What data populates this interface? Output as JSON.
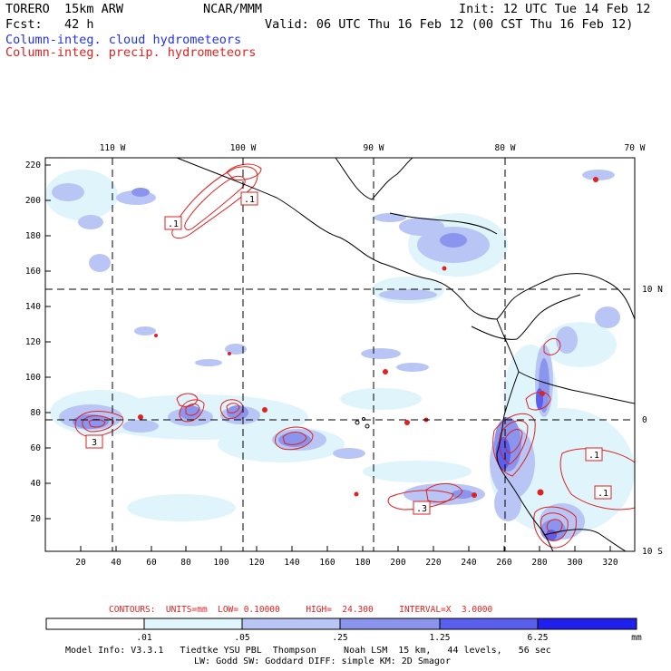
{
  "header": {
    "model": "TORERO  15km ARW",
    "org": "NCAR/MMM",
    "init": "Init: 12 UTC Tue 14 Feb 12",
    "fcst": "Fcst:   42 h",
    "valid": "Valid: 06 UTC Thu 16 Feb 12 (00 CST Thu 16 Feb 12)",
    "legend_cloud": "Column-integ. cloud hydrometeors",
    "legend_precip": "Column-integ. precip. hydrometeors"
  },
  "colors": {
    "cloud": "#2233dd",
    "precip": "#dd2222",
    "shade1": "#dff4fb",
    "shade2": "#b9c6f5",
    "shade3": "#8b95ee",
    "shade4": "#5a5ff0",
    "shade5": "#2020ee"
  },
  "map": {
    "lon_labels": [
      "110 W",
      "100 W",
      "90 W",
      "80 W",
      "70 W"
    ],
    "lat_labels": [
      "10 N",
      "0",
      "10 S"
    ],
    "y_ticks": [
      "220",
      "200",
      "180",
      "160",
      "140",
      "120",
      "100",
      "80",
      "60",
      "40",
      "20"
    ],
    "x_ticks": [
      "20",
      "40",
      "60",
      "80",
      "100",
      "120",
      "140",
      "160",
      "180",
      "200",
      "220",
      "240",
      "260",
      "280",
      "300",
      "320"
    ],
    "contour_labels": [
      ".1",
      ".1",
      "3",
      ".3",
      ".1",
      ".1"
    ]
  },
  "contour_info": {
    "label": "CONTOURS:  UNITS=mm  LOW= 0.10000     HIGH=  24.300     INTERVAL=X  3.0000"
  },
  "colorbar": {
    "tick_labels": [
      ".01",
      ".05",
      ".25",
      "1.25",
      "6.25"
    ],
    "units": "mm"
  },
  "footer": {
    "line1": "Model Info: V3.3.1   Tiedtke YSU PBL  Thompson     Noah LSM  15 km,   44 levels,   56 sec",
    "line2": "LW: Godd SW: Goddard DIFF: simple KM: 2D Smagor"
  }
}
